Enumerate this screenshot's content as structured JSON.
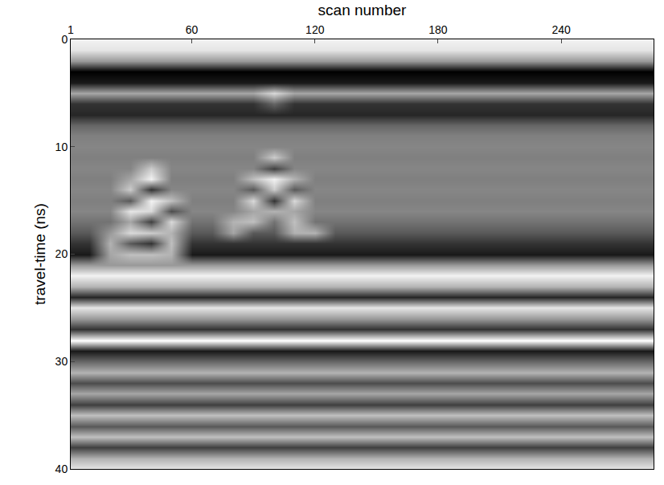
{
  "chart_data": {
    "type": "heatmap",
    "x_label": "scan number",
    "y_label": "travel-time (ns)",
    "xlim": [
      1,
      285
    ],
    "xticks": [
      1,
      60,
      120,
      180,
      240
    ],
    "ylim": [
      40,
      0
    ],
    "yticks": [
      0,
      10,
      20,
      30,
      40
    ],
    "zlim": [
      -1,
      1
    ],
    "grid": false,
    "x": [
      1,
      10,
      20,
      30,
      40,
      50,
      60,
      70,
      80,
      90,
      100,
      110,
      120,
      130,
      140,
      150,
      160,
      170,
      180,
      190,
      200,
      210,
      220,
      230,
      240,
      250,
      260,
      270,
      280
    ],
    "y": [
      0,
      1,
      2,
      3,
      4,
      5,
      6,
      7,
      8,
      9,
      10,
      11,
      12,
      13,
      14,
      15,
      16,
      17,
      18,
      19,
      20,
      21,
      22,
      23,
      24,
      25,
      26,
      27,
      28,
      29,
      30,
      31,
      32,
      33,
      34,
      35,
      36,
      37,
      38,
      39,
      40
    ],
    "z": [
      [
        0.9,
        0.9,
        0.9,
        0.9,
        0.9,
        0.9,
        0.9,
        0.9,
        0.9,
        0.9,
        0.9,
        0.9,
        0.9,
        0.9,
        0.9,
        0.9,
        0.9,
        0.9,
        0.9,
        0.9,
        0.9,
        0.9,
        0.9,
        0.9,
        0.9,
        0.9,
        0.9,
        0.9,
        0.9
      ],
      [
        0.8,
        0.8,
        0.8,
        0.8,
        0.8,
        0.8,
        0.8,
        0.8,
        0.8,
        0.8,
        0.8,
        0.8,
        0.8,
        0.8,
        0.8,
        0.8,
        0.8,
        0.8,
        0.8,
        0.8,
        0.8,
        0.8,
        0.8,
        0.8,
        0.8,
        0.8,
        0.8,
        0.8,
        0.8
      ],
      [
        0.2,
        0.2,
        0.2,
        0.2,
        0.2,
        0.2,
        0.2,
        0.2,
        0.2,
        0.2,
        0.2,
        0.2,
        0.2,
        0.2,
        0.2,
        0.2,
        0.2,
        0.2,
        0.2,
        0.2,
        0.2,
        0.2,
        0.2,
        0.2,
        0.2,
        0.2,
        0.2,
        0.2,
        0.2
      ],
      [
        -1,
        -1,
        -1,
        -1,
        -1,
        -1,
        -1,
        -1,
        -1,
        -1,
        -1,
        -1,
        -1,
        -1,
        -1,
        -1,
        -1,
        -1,
        -1,
        -1,
        -1,
        -1,
        -1,
        -1,
        -1,
        -1,
        -1,
        -1,
        -1
      ],
      [
        -0.8,
        -0.8,
        -0.8,
        -0.8,
        -0.8,
        -0.8,
        -0.8,
        -0.8,
        -0.8,
        -0.8,
        -0.8,
        -0.8,
        -0.8,
        -0.8,
        -0.8,
        -0.8,
        -0.8,
        -0.8,
        -0.8,
        -0.8,
        -0.8,
        -0.8,
        -0.8,
        -0.8,
        -0.8,
        -0.8,
        -0.8,
        -0.8,
        -0.8
      ],
      [
        0.3,
        0.3,
        0.3,
        0.3,
        0.3,
        0.3,
        0.3,
        0.3,
        0.3,
        0.3,
        0.7,
        0.3,
        0.3,
        0.3,
        0.3,
        0.3,
        0.3,
        0.3,
        0.3,
        0.3,
        0.3,
        0.3,
        0.3,
        0.3,
        0.3,
        0.3,
        0.3,
        0.3,
        0.3
      ],
      [
        -0.6,
        -0.6,
        -0.6,
        -0.6,
        -0.6,
        -0.6,
        -0.6,
        -0.6,
        -0.6,
        -0.6,
        -0.2,
        -0.6,
        -0.6,
        -0.6,
        -0.6,
        -0.6,
        -0.6,
        -0.6,
        -0.6,
        -0.6,
        -0.6,
        -0.6,
        -0.6,
        -0.6,
        -0.6,
        -0.6,
        -0.6,
        -0.6,
        -0.6
      ],
      [
        -0.7,
        -0.7,
        -0.7,
        -0.7,
        -0.7,
        -0.7,
        -0.7,
        -0.7,
        -0.7,
        -0.7,
        -0.7,
        -0.7,
        -0.7,
        -0.7,
        -0.7,
        -0.7,
        -0.7,
        -0.7,
        -0.7,
        -0.7,
        -0.7,
        -0.7,
        -0.7,
        -0.7,
        -0.7,
        -0.7,
        -0.7,
        -0.7,
        -0.7
      ],
      [
        -0.2,
        -0.2,
        -0.2,
        -0.2,
        -0.2,
        -0.2,
        -0.2,
        -0.2,
        -0.2,
        -0.2,
        -0.2,
        -0.2,
        -0.2,
        -0.2,
        -0.2,
        -0.2,
        -0.2,
        -0.2,
        -0.2,
        -0.2,
        -0.2,
        -0.2,
        -0.2,
        -0.2,
        -0.2,
        -0.2,
        -0.2,
        -0.2,
        -0.2
      ],
      [
        0,
        0,
        0,
        0,
        0,
        0,
        0,
        0,
        0,
        0,
        0,
        0,
        0,
        0,
        0,
        0,
        0,
        0,
        0,
        0,
        0,
        0,
        0,
        0,
        0,
        0,
        0,
        0,
        0
      ],
      [
        0.05,
        0.05,
        0.05,
        0.05,
        0.05,
        0.05,
        0.05,
        0.05,
        0.05,
        0.05,
        0.05,
        0.05,
        0.05,
        0.05,
        0.05,
        0.05,
        0.05,
        0.05,
        0.05,
        0.05,
        0.05,
        0.05,
        0.05,
        0.05,
        0.05,
        0.05,
        0.05,
        0.05,
        0.05
      ],
      [
        0,
        0,
        0,
        0,
        0,
        0,
        0,
        0,
        0,
        0,
        0.6,
        0,
        0,
        0,
        0,
        0,
        0,
        0,
        0,
        0,
        0,
        0,
        0,
        0,
        0,
        0,
        0,
        0,
        0
      ],
      [
        0.05,
        0.05,
        0.05,
        0.05,
        0.6,
        0.05,
        0.05,
        0.05,
        0.05,
        0.05,
        -0.5,
        0.05,
        0.05,
        0.05,
        0.05,
        0.05,
        0.05,
        0.05,
        0.05,
        0.05,
        0.05,
        0.05,
        0.05,
        0.05,
        0.05,
        0.05,
        0.05,
        0.05,
        0.05
      ],
      [
        0,
        0,
        0,
        0.3,
        0.9,
        0,
        0,
        0,
        0,
        0.5,
        0.9,
        0.4,
        0,
        0,
        0,
        0,
        0,
        0,
        0,
        0,
        0,
        0,
        0,
        0,
        0,
        0,
        0,
        0,
        0
      ],
      [
        0.05,
        0.05,
        0.05,
        0.6,
        -0.6,
        0.05,
        0.05,
        0.05,
        0.05,
        -0.3,
        0.6,
        -0.3,
        0.05,
        0.05,
        0.05,
        0.05,
        0.05,
        0.05,
        0.05,
        0.05,
        0.05,
        0.05,
        0.05,
        0.05,
        0.05,
        0.05,
        0.05,
        0.05,
        0.05
      ],
      [
        0,
        0,
        0,
        -0.3,
        0.9,
        0.5,
        0,
        0,
        0,
        0.7,
        -0.6,
        0.7,
        0,
        0,
        0,
        0,
        0,
        0,
        0,
        0,
        0,
        0,
        0,
        0,
        0,
        0,
        0,
        0,
        0
      ],
      [
        0.05,
        0.05,
        0.05,
        0.8,
        0.7,
        -0.4,
        0.05,
        0.05,
        0.05,
        0.3,
        0.4,
        0.3,
        0.05,
        0.05,
        0.05,
        0.05,
        0.05,
        0.05,
        0.05,
        0.05,
        0.05,
        0.05,
        0.05,
        0.05,
        0.05,
        0.05,
        0.05,
        0.05,
        0.05
      ],
      [
        -0.1,
        -0.1,
        -0.1,
        0.3,
        -0.5,
        0.7,
        -0.1,
        -0.1,
        0.4,
        0.5,
        -0.1,
        0.5,
        -0.1,
        -0.1,
        -0.1,
        -0.1,
        -0.1,
        -0.1,
        -0.1,
        -0.1,
        -0.1,
        -0.1,
        -0.1,
        -0.1,
        -0.1,
        -0.1,
        -0.1,
        -0.1,
        -0.1
      ],
      [
        -0.3,
        -0.3,
        0.2,
        0.7,
        0.6,
        0.4,
        -0.3,
        -0.3,
        0.3,
        -0.3,
        -0.3,
        0.4,
        0.4,
        -0.3,
        -0.3,
        -0.3,
        -0.3,
        -0.3,
        -0.3,
        -0.3,
        -0.3,
        -0.3,
        -0.3,
        -0.3,
        -0.3,
        -0.3,
        -0.3,
        -0.3,
        -0.3
      ],
      [
        -0.6,
        -0.6,
        0.4,
        -0.3,
        -0.6,
        0.5,
        -0.6,
        -0.6,
        -0.6,
        -0.6,
        -0.6,
        -0.6,
        -0.6,
        -0.6,
        -0.6,
        -0.6,
        -0.6,
        -0.6,
        -0.6,
        -0.6,
        -0.6,
        -0.6,
        -0.6,
        -0.6,
        -0.6,
        -0.6,
        -0.6,
        -0.6,
        -0.6
      ],
      [
        -0.8,
        -0.8,
        0.3,
        0.5,
        0.5,
        0.4,
        -0.8,
        -0.8,
        -0.8,
        -0.8,
        -0.8,
        -0.8,
        -0.8,
        -0.8,
        -0.8,
        -0.8,
        -0.8,
        -0.8,
        -0.8,
        -0.8,
        -0.8,
        -0.8,
        -0.8,
        -0.8,
        -0.8,
        -0.8,
        -0.8,
        -0.8,
        -0.8
      ],
      [
        0.2,
        0.2,
        0.2,
        0.2,
        0.2,
        0.2,
        0.2,
        0.2,
        0.2,
        0.2,
        0.2,
        0.2,
        0.2,
        0.2,
        0.2,
        0.2,
        0.2,
        0.2,
        0.2,
        0.2,
        0.2,
        0.2,
        0.2,
        0.2,
        0.2,
        0.2,
        0.2,
        0.2,
        0.2
      ],
      [
        0.9,
        0.9,
        0.9,
        0.9,
        0.9,
        0.9,
        0.9,
        0.9,
        0.9,
        0.9,
        0.9,
        0.9,
        0.9,
        0.9,
        0.9,
        0.9,
        0.9,
        0.9,
        0.9,
        0.9,
        0.9,
        0.9,
        0.9,
        0.9,
        0.9,
        0.9,
        0.9,
        0.9,
        0.9
      ],
      [
        0.4,
        0.4,
        0.4,
        0.4,
        0.4,
        0.4,
        0.4,
        0.4,
        0.4,
        0.4,
        0.4,
        0.4,
        0.4,
        0.4,
        0.4,
        0.4,
        0.4,
        0.4,
        0.4,
        0.4,
        0.4,
        0.4,
        0.4,
        0.4,
        0.4,
        0.4,
        0.4,
        0.4,
        0.4
      ],
      [
        -0.7,
        -0.7,
        -0.7,
        -0.7,
        -0.7,
        -0.7,
        -0.7,
        -0.7,
        -0.7,
        -0.7,
        -0.7,
        -0.7,
        -0.7,
        -0.7,
        -0.7,
        -0.7,
        -0.7,
        -0.7,
        -0.7,
        -0.7,
        -0.7,
        -0.7,
        -0.7,
        -0.7,
        -0.7,
        -0.7,
        -0.7,
        -0.7,
        -0.7
      ],
      [
        0.8,
        0.8,
        0.8,
        0.8,
        0.8,
        0.8,
        0.8,
        0.8,
        0.8,
        0.8,
        0.8,
        0.8,
        0.8,
        0.8,
        0.8,
        0.8,
        0.8,
        0.8,
        0.8,
        0.8,
        0.8,
        0.8,
        0.8,
        0.8,
        0.8,
        0.8,
        0.8,
        0.8,
        0.8
      ],
      [
        0.2,
        0.2,
        0.2,
        0.2,
        0.2,
        0.2,
        0.2,
        0.2,
        0.2,
        0.2,
        0.2,
        0.2,
        0.2,
        0.2,
        0.2,
        0.2,
        0.2,
        0.2,
        0.2,
        0.2,
        0.2,
        0.2,
        0.2,
        0.2,
        0.2,
        0.2,
        0.2,
        0.2,
        0.2
      ],
      [
        -0.6,
        -0.6,
        -0.6,
        -0.6,
        -0.6,
        -0.6,
        -0.6,
        -0.6,
        -0.6,
        -0.6,
        -0.6,
        -0.6,
        -0.6,
        -0.6,
        -0.6,
        -0.6,
        -0.6,
        -0.6,
        -0.6,
        -0.6,
        -0.6,
        -0.6,
        -0.6,
        -0.6,
        -0.6,
        -0.6,
        -0.6,
        -0.6,
        -0.6
      ],
      [
        1,
        1,
        1,
        1,
        1,
        1,
        1,
        1,
        1,
        1,
        1,
        1,
        1,
        1,
        1,
        1,
        1,
        1,
        1,
        1,
        1,
        1,
        1,
        1,
        1,
        1,
        1,
        1,
        1
      ],
      [
        -0.8,
        -0.8,
        -0.8,
        -0.8,
        -0.8,
        -0.8,
        -0.8,
        -0.8,
        -0.8,
        -0.8,
        -0.8,
        -0.8,
        -0.8,
        -0.8,
        -0.8,
        -0.8,
        -0.8,
        -0.8,
        -0.8,
        -0.8,
        -0.8,
        -0.8,
        -0.8,
        -0.8,
        -0.8,
        -0.8,
        -0.8,
        -0.8,
        -0.8
      ],
      [
        -0.2,
        -0.2,
        -0.2,
        -0.2,
        -0.2,
        -0.2,
        -0.2,
        -0.2,
        -0.2,
        -0.2,
        -0.2,
        -0.2,
        -0.2,
        -0.2,
        -0.2,
        -0.2,
        -0.2,
        -0.2,
        -0.2,
        -0.2,
        -0.2,
        -0.2,
        -0.2,
        -0.2,
        -0.2,
        -0.2,
        -0.2,
        -0.2,
        -0.2
      ],
      [
        0.4,
        0.4,
        0.4,
        0.4,
        0.4,
        0.4,
        0.4,
        0.4,
        0.4,
        0.4,
        0.4,
        0.4,
        0.4,
        0.4,
        0.4,
        0.4,
        0.4,
        0.4,
        0.4,
        0.4,
        0.4,
        0.4,
        0.4,
        0.4,
        0.4,
        0.4,
        0.4,
        0.4,
        0.4
      ],
      [
        -0.4,
        -0.4,
        -0.4,
        -0.4,
        -0.4,
        -0.4,
        -0.4,
        -0.4,
        -0.4,
        -0.4,
        -0.4,
        -0.4,
        -0.4,
        -0.4,
        -0.4,
        -0.4,
        -0.4,
        -0.4,
        -0.4,
        -0.4,
        -0.4,
        -0.4,
        -0.4,
        -0.4,
        -0.4,
        -0.4,
        -0.4,
        -0.4,
        -0.4
      ],
      [
        0.3,
        0.3,
        0.3,
        0.3,
        0.3,
        0.3,
        0.3,
        0.3,
        0.3,
        0.3,
        0.3,
        0.3,
        0.3,
        0.3,
        0.3,
        0.3,
        0.3,
        0.3,
        0.3,
        0.3,
        0.3,
        0.3,
        0.3,
        0.3,
        0.3,
        0.3,
        0.3,
        0.3,
        0.3
      ],
      [
        -0.5,
        -0.5,
        -0.5,
        -0.5,
        -0.5,
        -0.5,
        -0.5,
        -0.5,
        -0.5,
        -0.5,
        -0.5,
        -0.5,
        -0.5,
        -0.5,
        -0.5,
        -0.5,
        -0.5,
        -0.5,
        -0.5,
        -0.5,
        -0.5,
        -0.5,
        -0.5,
        -0.5,
        -0.5,
        -0.5,
        -0.5,
        -0.5,
        -0.5
      ],
      [
        0.5,
        0.5,
        0.5,
        0.5,
        0.5,
        0.5,
        0.5,
        0.5,
        0.5,
        0.5,
        0.5,
        0.5,
        0.5,
        0.5,
        0.5,
        0.5,
        0.5,
        0.5,
        0.5,
        0.5,
        0.5,
        0.5,
        0.5,
        0.5,
        0.5,
        0.5,
        0.5,
        0.5,
        0.5
      ],
      [
        -0.3,
        -0.3,
        -0.3,
        -0.3,
        -0.3,
        -0.3,
        -0.3,
        -0.3,
        -0.3,
        -0.3,
        -0.3,
        -0.3,
        -0.3,
        -0.3,
        -0.3,
        -0.3,
        -0.3,
        -0.3,
        -0.3,
        -0.3,
        -0.3,
        -0.3,
        -0.3,
        -0.3,
        -0.3,
        -0.3,
        -0.3,
        -0.3,
        -0.3
      ],
      [
        0.5,
        0.5,
        0.5,
        0.5,
        0.5,
        0.5,
        0.5,
        0.5,
        0.5,
        0.5,
        0.5,
        0.5,
        0.5,
        0.5,
        0.5,
        0.5,
        0.5,
        0.5,
        0.5,
        0.5,
        0.5,
        0.5,
        0.5,
        0.5,
        0.5,
        0.5,
        0.5,
        0.5,
        0.5
      ],
      [
        -0.5,
        -0.5,
        -0.5,
        -0.5,
        -0.5,
        -0.5,
        -0.5,
        -0.5,
        -0.5,
        -0.5,
        -0.5,
        -0.5,
        -0.5,
        -0.5,
        -0.5,
        -0.5,
        -0.5,
        -0.5,
        -0.5,
        -0.5,
        -0.5,
        -0.5,
        -0.5,
        -0.5,
        -0.5,
        -0.5,
        -0.5,
        -0.5,
        -0.5
      ],
      [
        0.4,
        0.4,
        0.4,
        0.4,
        0.4,
        0.4,
        0.4,
        0.4,
        0.4,
        0.4,
        0.4,
        0.4,
        0.4,
        0.4,
        0.4,
        0.4,
        0.4,
        0.4,
        0.4,
        0.4,
        0.4,
        0.4,
        0.4,
        0.4,
        0.4,
        0.4,
        0.4,
        0.4,
        0.4
      ],
      [
        0.8,
        0.8,
        0.8,
        0.8,
        0.8,
        0.8,
        0.8,
        0.8,
        0.8,
        0.8,
        0.8,
        0.8,
        0.8,
        0.8,
        0.8,
        0.8,
        0.8,
        0.8,
        0.8,
        0.8,
        0.8,
        0.8,
        0.8,
        0.8,
        0.8,
        0.8,
        0.8,
        0.8,
        0.8
      ]
    ]
  }
}
